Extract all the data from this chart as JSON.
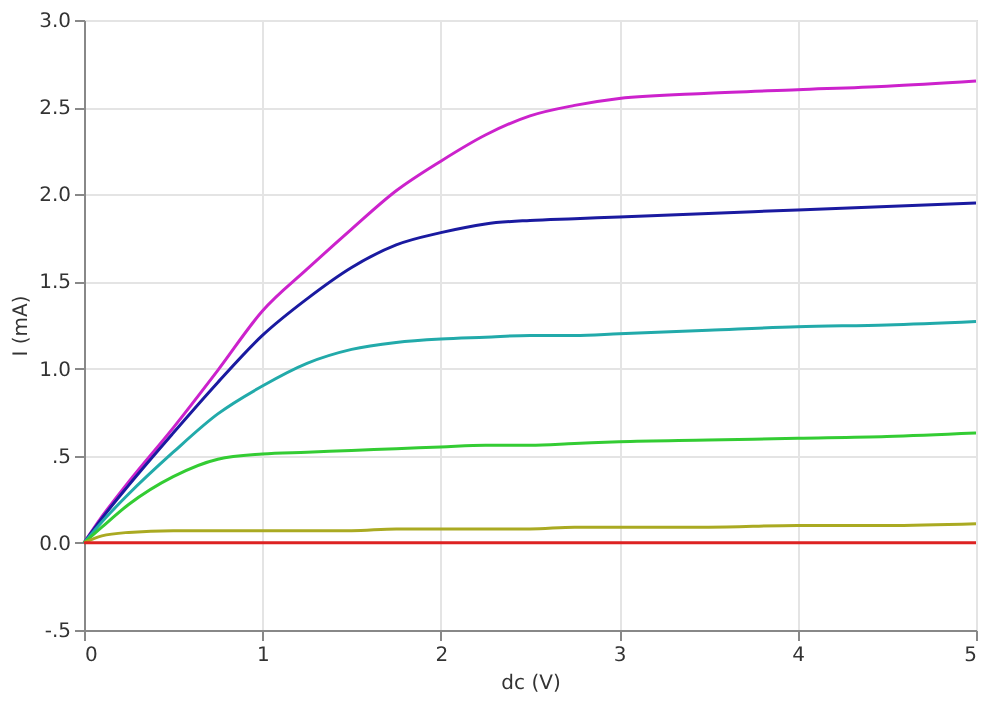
{
  "chart_data": {
    "type": "line",
    "xlabel": "dc (V)",
    "ylabel": "I (mA)",
    "x": [
      0,
      0.1,
      0.25,
      0.5,
      0.75,
      1,
      1.25,
      1.5,
      1.75,
      2,
      2.25,
      2.5,
      2.75,
      3,
      3.5,
      4,
      4.5,
      5
    ],
    "series": [
      {
        "color": "#cc22cc",
        "values": [
          0,
          0.15,
          0.35,
          0.66,
          0.99,
          1.33,
          1.57,
          1.8,
          2.02,
          2.19,
          2.34,
          2.45,
          2.51,
          2.55,
          2.58,
          2.6,
          2.62,
          2.65
        ]
      },
      {
        "color": "#1a1aa0",
        "values": [
          0,
          0.14,
          0.33,
          0.63,
          0.92,
          1.19,
          1.4,
          1.58,
          1.71,
          1.78,
          1.83,
          1.85,
          1.86,
          1.87,
          1.89,
          1.91,
          1.93,
          1.95
        ]
      },
      {
        "color": "#22aaaa",
        "values": [
          0,
          0.12,
          0.28,
          0.52,
          0.74,
          0.9,
          1.03,
          1.11,
          1.15,
          1.17,
          1.18,
          1.19,
          1.19,
          1.2,
          1.22,
          1.24,
          1.25,
          1.27
        ]
      },
      {
        "color": "#33cc33",
        "values": [
          0,
          0.09,
          0.22,
          0.38,
          0.48,
          0.51,
          0.52,
          0.53,
          0.54,
          0.55,
          0.56,
          0.56,
          0.57,
          0.58,
          0.59,
          0.6,
          0.61,
          0.63
        ]
      },
      {
        "color": "#aaaa22",
        "values": [
          0,
          0.04,
          0.06,
          0.07,
          0.07,
          0.07,
          0.07,
          0.07,
          0.08,
          0.08,
          0.08,
          0.08,
          0.09,
          0.09,
          0.09,
          0.1,
          0.1,
          0.11
        ]
      },
      {
        "color": "#dd2222",
        "values": [
          0,
          0,
          0,
          0,
          0,
          0,
          0,
          0,
          0,
          0,
          0,
          0,
          0,
          0,
          0,
          0,
          0,
          0
        ]
      }
    ],
    "xlim": [
      0,
      5
    ],
    "xticks": [
      0,
      1,
      2,
      3,
      4,
      5
    ],
    "ylim": [
      -0.5,
      3.0
    ],
    "yticks": [
      {
        "value": -0.5,
        "label": "-.5"
      },
      {
        "value": 0,
        "label": "0.0"
      },
      {
        "value": 0.5,
        "label": ".5"
      },
      {
        "value": 1,
        "label": "1.0"
      },
      {
        "value": 1.5,
        "label": "1.5"
      },
      {
        "value": 2,
        "label": "2.0"
      },
      {
        "value": 2.5,
        "label": "2.5"
      },
      {
        "value": 3,
        "label": "3.0"
      }
    ],
    "grid": true,
    "legend": false,
    "marker": "none",
    "line_style": "solid"
  }
}
